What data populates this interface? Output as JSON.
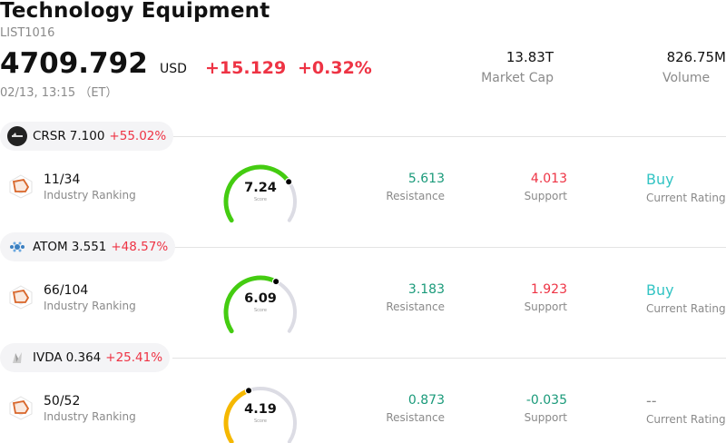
{
  "header": {
    "title": "Technology Equipment",
    "code": "LIST1016",
    "price": "4709.792",
    "currency": "USD",
    "change": "+15.129",
    "change_pct": "+0.32%",
    "time": "02/13, 13:15 （ET）",
    "market_cap": {
      "value": "13.83T",
      "label": "Market Cap"
    },
    "volume": {
      "value": "826.75M",
      "label": "Volume"
    }
  },
  "stocks": [
    {
      "ticker": "CRSR",
      "price": "7.100",
      "change_pct": "+55.02%",
      "logo_icon": "corsair-logo-icon",
      "rank": "11/34",
      "rank_label": "Industry Ranking",
      "score": "7.24",
      "score_value": 7.24,
      "score_label": "Score",
      "gauge_color": "#44cc11",
      "resistance": "5.613",
      "resistance_label": "Resistance",
      "support": "4.013",
      "support_label": "Support",
      "support_color": "#ee3344",
      "rating": "Buy",
      "rating_label": "Current Rating",
      "rating_color": "#33c4c4"
    },
    {
      "ticker": "ATOM",
      "price": "3.551",
      "change_pct": "+48.57%",
      "logo_icon": "atomera-logo-icon",
      "rank": "66/104",
      "rank_label": "Industry Ranking",
      "score": "6.09",
      "score_value": 6.09,
      "score_label": "Score",
      "gauge_color": "#44cc11",
      "resistance": "3.183",
      "resistance_label": "Resistance",
      "support": "1.923",
      "support_label": "Support",
      "support_color": "#ee3344",
      "rating": "Buy",
      "rating_label": "Current Rating",
      "rating_color": "#33c4c4"
    },
    {
      "ticker": "IVDA",
      "price": "0.364",
      "change_pct": "+25.41%",
      "logo_icon": "iveda-logo-icon",
      "rank": "50/52",
      "rank_label": "Industry Ranking",
      "score": "4.19",
      "score_value": 4.19,
      "score_label": "Score",
      "gauge_color": "#f5b800",
      "resistance": "0.873",
      "resistance_label": "Resistance",
      "support": "-0.035",
      "support_label": "Support",
      "support_color": "#1a9a7a",
      "rating": "--",
      "rating_label": "Current Rating",
      "rating_color": "#888888"
    }
  ]
}
